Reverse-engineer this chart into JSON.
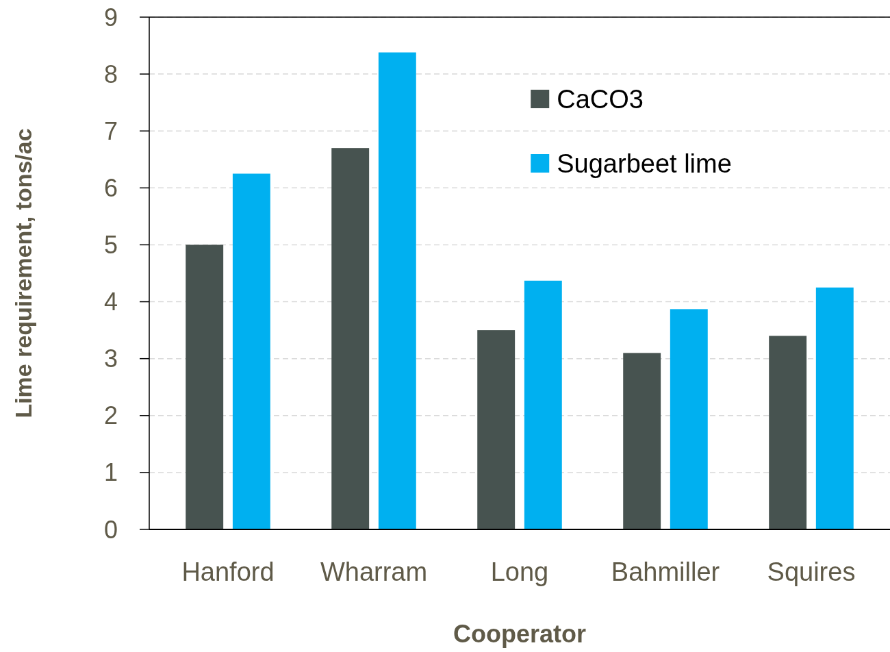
{
  "chart_data": {
    "type": "bar",
    "xlabel": "Cooperator",
    "ylabel": "Lime requirement, tons/ac",
    "categories": [
      "Hanford",
      "Wharram",
      "Long",
      "Bahmiller",
      "Squires"
    ],
    "series": [
      {
        "name": "CaCO3",
        "color": "#475350",
        "values": [
          5.0,
          6.7,
          3.5,
          3.1,
          3.4
        ]
      },
      {
        "name": "Sugarbeet lime",
        "color": "#00b0f0",
        "values": [
          6.25,
          8.38,
          4.37,
          3.87,
          4.25
        ]
      }
    ],
    "ylim": [
      0,
      9
    ],
    "yticks": [
      0,
      1,
      2,
      3,
      4,
      5,
      6,
      7,
      8,
      9
    ],
    "grid": "y",
    "legend": "top right"
  }
}
